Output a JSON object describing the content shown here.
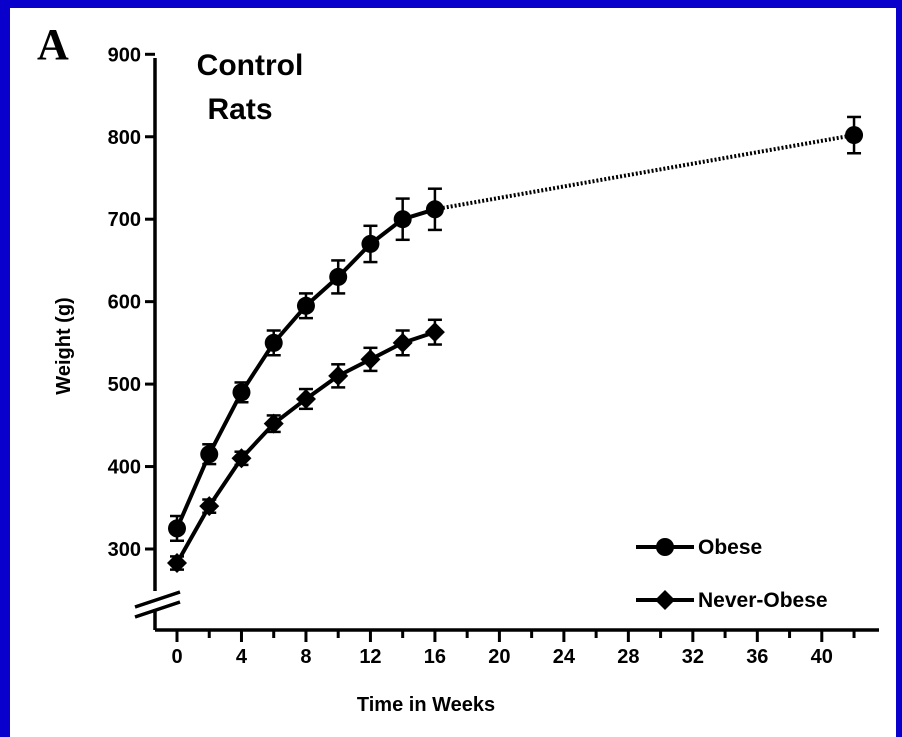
{
  "page": {
    "background": "#0a00cc",
    "panel_background": "#ffffff"
  },
  "chart_data": {
    "type": "line",
    "panel_label": "A",
    "title": [
      "Control",
      "Rats"
    ],
    "xlabel": "Time in Weeks",
    "ylabel": "Weight (g)",
    "xlim": [
      -1,
      43
    ],
    "ylim": [
      200,
      900
    ],
    "axis_break": "y-axis between 200 and 300",
    "x_ticks": [
      0,
      4,
      8,
      12,
      16,
      20,
      24,
      28,
      32,
      36,
      40
    ],
    "x_tick_labels": [
      "0",
      "4",
      "8",
      "12",
      "16",
      "20",
      "24",
      "28",
      "32",
      "36",
      "40"
    ],
    "y_ticks": [
      300,
      400,
      500,
      600,
      700,
      800,
      900
    ],
    "y_tick_labels": [
      "300",
      "400",
      "500",
      "600",
      "700",
      "800",
      "900"
    ],
    "legend_position": "bottom-right",
    "series": [
      {
        "name": "Obese",
        "marker": "circle",
        "color": "#000000",
        "x": [
          0,
          2,
          4,
          6,
          8,
          10,
          12,
          14,
          16,
          42
        ],
        "y": [
          325,
          415,
          490,
          550,
          595,
          630,
          670,
          700,
          712,
          802
        ],
        "error": [
          15,
          12,
          12,
          15,
          15,
          20,
          22,
          25,
          25,
          22
        ],
        "dotted_segment_from_index": 8
      },
      {
        "name": "Never-Obese",
        "marker": "diamond",
        "color": "#000000",
        "x": [
          0,
          2,
          4,
          6,
          8,
          10,
          12,
          14,
          16
        ],
        "y": [
          283,
          352,
          410,
          452,
          482,
          510,
          530,
          550,
          563
        ],
        "error": [
          8,
          8,
          8,
          10,
          12,
          14,
          14,
          15,
          15
        ]
      }
    ]
  }
}
